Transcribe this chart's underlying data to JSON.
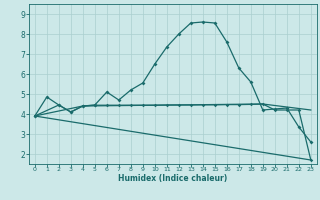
{
  "xlabel": "Humidex (Indice chaleur)",
  "bg_color": "#cce8e8",
  "grid_color": "#aacfcf",
  "line_color": "#1a6b6b",
  "xlim": [
    -0.5,
    23.5
  ],
  "ylim": [
    1.5,
    9.5
  ],
  "xticks": [
    0,
    1,
    2,
    3,
    4,
    5,
    6,
    7,
    8,
    9,
    10,
    11,
    12,
    13,
    14,
    15,
    16,
    17,
    18,
    19,
    20,
    21,
    22,
    23
  ],
  "yticks": [
    2,
    3,
    4,
    5,
    6,
    7,
    8,
    9
  ],
  "line1_x": [
    0,
    1,
    2,
    3,
    4,
    5,
    6,
    7,
    8,
    9,
    10,
    11,
    12,
    13,
    14,
    15,
    16,
    17,
    18,
    19,
    20,
    21,
    22,
    23
  ],
  "line1_y": [
    3.9,
    4.85,
    4.45,
    4.1,
    4.4,
    4.45,
    5.1,
    4.7,
    5.2,
    5.55,
    6.5,
    7.35,
    8.0,
    8.55,
    8.6,
    8.55,
    7.6,
    6.3,
    5.6,
    4.2,
    4.25,
    4.3,
    3.35,
    2.6
  ],
  "line2_x": [
    0,
    2,
    3,
    4,
    5,
    6,
    7,
    8,
    9,
    10,
    11,
    12,
    13,
    14,
    15,
    16,
    17,
    18,
    19,
    20,
    21,
    22,
    23
  ],
  "line2_y": [
    3.9,
    4.45,
    4.1,
    4.4,
    4.44,
    4.44,
    4.44,
    4.44,
    4.44,
    4.44,
    4.45,
    4.45,
    4.45,
    4.46,
    4.46,
    4.47,
    4.47,
    4.48,
    4.5,
    4.2,
    4.2,
    4.2,
    1.7
  ],
  "line3_x": [
    0,
    23
  ],
  "line3_y": [
    3.9,
    1.7
  ],
  "line4_x": [
    0,
    4,
    19,
    23
  ],
  "line4_y": [
    3.9,
    4.4,
    4.5,
    4.2
  ]
}
